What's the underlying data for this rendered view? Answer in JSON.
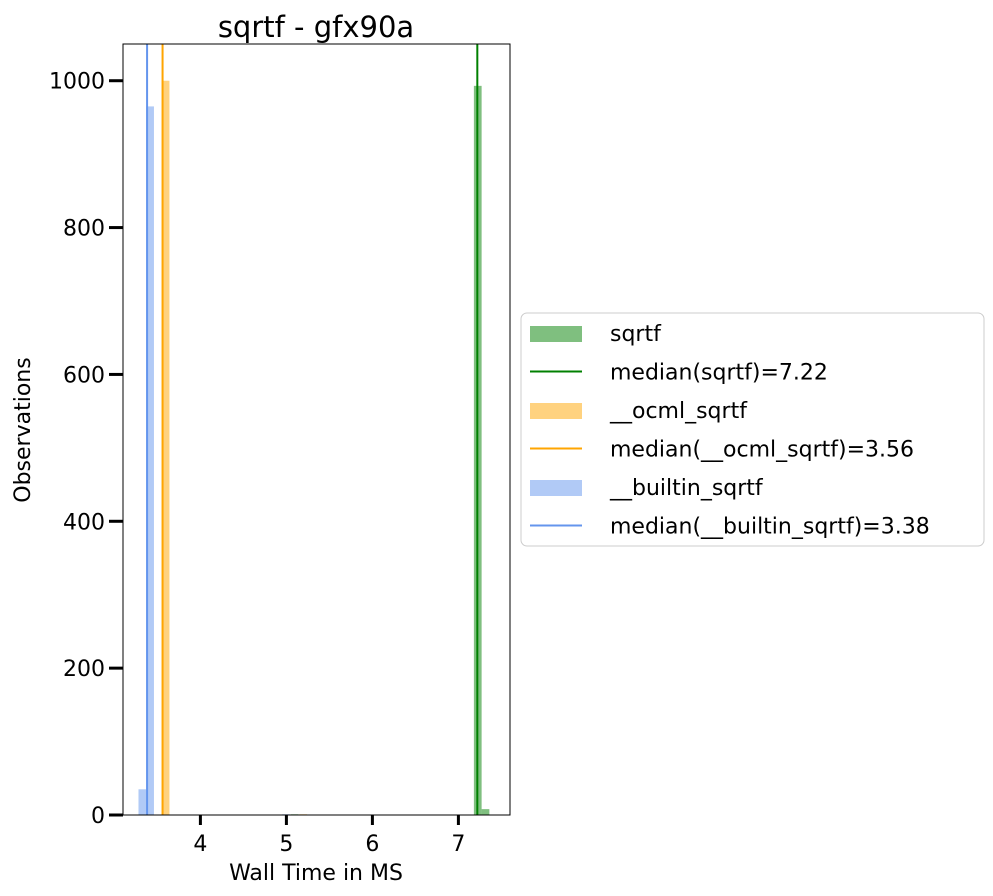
{
  "chart_data": {
    "type": "bar",
    "title": "sqrtf - gfx90a",
    "xlabel": "Wall Time in MS",
    "ylabel": "Observations",
    "xlim": [
      3.1,
      7.6
    ],
    "ylim": [
      0,
      1050
    ],
    "xticks": [
      4,
      5,
      6,
      7
    ],
    "yticks": [
      0,
      200,
      400,
      600,
      800,
      1000
    ],
    "bin_width": 0.09,
    "grid": false,
    "legend_position": "center-left-outside",
    "series": [
      {
        "name": "sqrtf",
        "kind": "histogram",
        "color": "#008000",
        "opacity": 0.5,
        "bins": [
          {
            "x": 7.18,
            "count": 993
          },
          {
            "x": 7.27,
            "count": 8
          },
          {
            "x": 5.05,
            "count": 1
          }
        ]
      },
      {
        "name": "median(sqrtf)=7.22",
        "kind": "vline",
        "color": "#008000",
        "x": 7.22
      },
      {
        "name": "__ocml_sqrtf",
        "kind": "histogram",
        "color": "#FFA500",
        "opacity": 0.5,
        "bins": [
          {
            "x": 3.55,
            "count": 1000
          },
          {
            "x": 5.15,
            "count": 1
          }
        ]
      },
      {
        "name": "median(__ocml_sqrtf)=3.56",
        "kind": "vline",
        "color": "#FFA500",
        "x": 3.56
      },
      {
        "name": "__builtin_sqrtf",
        "kind": "histogram",
        "color": "#6495ED",
        "opacity": 0.5,
        "bins": [
          {
            "x": 3.28,
            "count": 35
          },
          {
            "x": 3.37,
            "count": 965
          },
          {
            "x": 4.95,
            "count": 1
          }
        ]
      },
      {
        "name": "median(__builtin_sqrtf)=3.38",
        "kind": "vline",
        "color": "#6495ED",
        "x": 3.38
      }
    ]
  }
}
